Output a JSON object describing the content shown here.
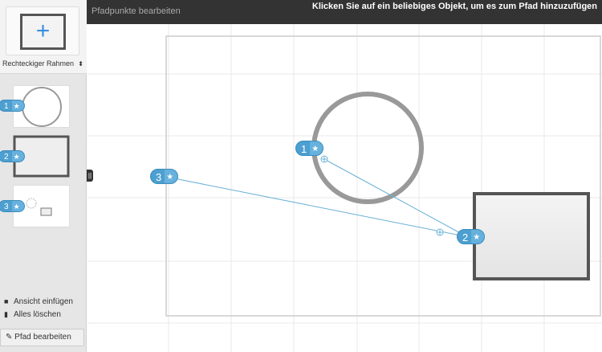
{
  "sidebar": {
    "add_icon": "plus-icon",
    "frame_type": "Rechteckiger Rahmen",
    "steps": [
      {
        "n": "1"
      },
      {
        "n": "2"
      },
      {
        "n": "3"
      }
    ],
    "insert_view": "Ansicht einfügen",
    "clear_all": "Alles löschen",
    "edit_path": "Pfad bearbeiten"
  },
  "header": {
    "title": "Pfadpunkte bearbeiten",
    "message": "Klicken Sie auf ein beliebiges Objekt, um es zum Pfad hinzuzufügen"
  },
  "canvas": {
    "points": [
      {
        "n": "1"
      },
      {
        "n": "2"
      },
      {
        "n": "3"
      }
    ]
  },
  "colors": {
    "accent": "#4c9fd0",
    "header": "#333333"
  }
}
